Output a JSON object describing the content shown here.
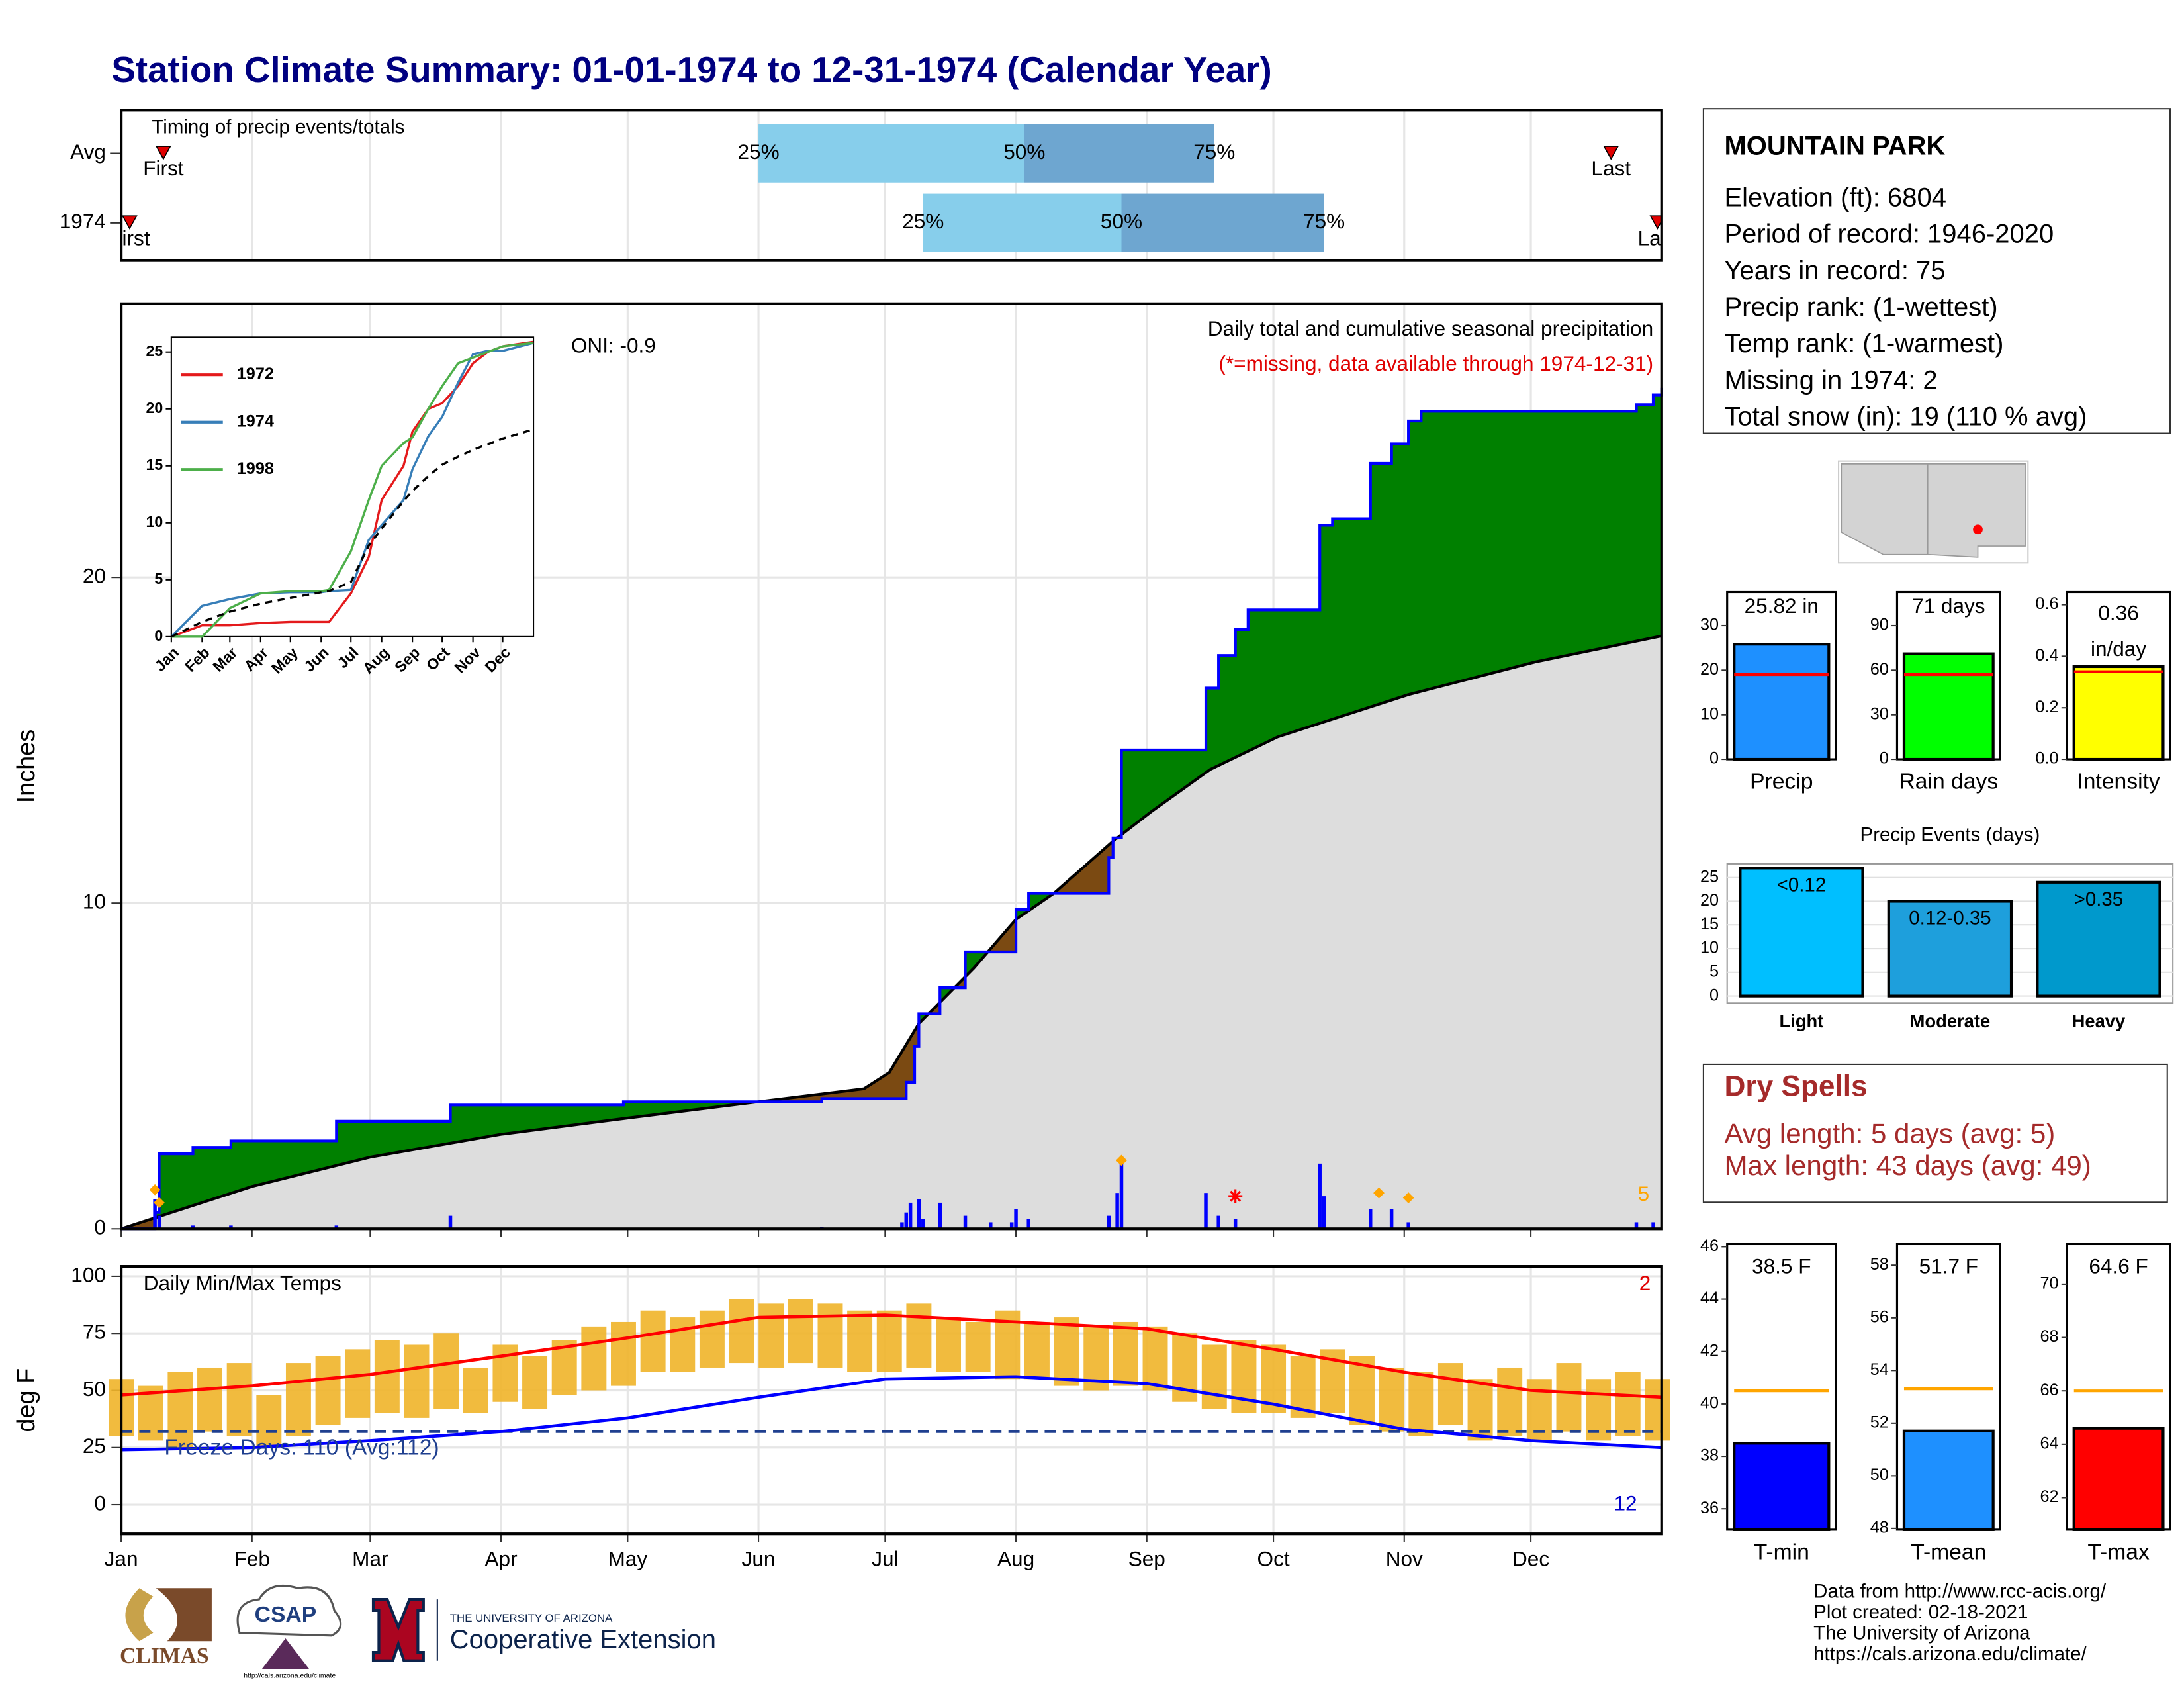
{
  "title": "Station Climate Summary: 01-01-1974 to 12-31-1974 (Calendar Year)",
  "chart_data": [
    {
      "type": "range",
      "label": "Timing of precip events/totals",
      "categories": [
        "Avg",
        "1974"
      ],
      "first": [
        11,
        3
      ],
      "last": [
        354,
        365
      ],
      "first_label": "First",
      "last_label": "Last",
      "q25": [
        152,
        191
      ],
      "q50": [
        215,
        238
      ],
      "q75": [
        260,
        286
      ],
      "q_labels": [
        "25%",
        "50%",
        "75%"
      ],
      "xlim": [
        1,
        366
      ],
      "colors": [
        "#87ceeb",
        "#6ea6d0"
      ]
    },
    {
      "type": "area",
      "ylabel": "Inches",
      "annotation": "Daily total and cumulative seasonal precipitation",
      "note": "(*=missing, data available through 1974-12-31)",
      "oni": "ONI: -0.9",
      "corner_label": "5",
      "xlim": [
        1,
        366
      ],
      "ylim": [
        0,
        28.4
      ],
      "yticks": [
        0,
        10,
        20
      ],
      "grid": true,
      "cumulative": {
        "color": "#0000ff",
        "x": [
          1,
          9,
          10,
          18,
          27,
          52,
          79,
          120,
          167,
          187,
          189,
          190,
          195,
          201,
          213,
          216,
          235,
          236,
          238,
          258,
          261,
          265,
          268,
          285,
          288,
          297,
          302,
          306,
          309,
          360,
          364,
          366
        ],
        "values": [
          0,
          0.5,
          2.3,
          2.5,
          2.7,
          3.3,
          3.8,
          3.9,
          4.0,
          4.5,
          5.6,
          6.6,
          7.4,
          8.5,
          9.8,
          10.3,
          11.4,
          12.0,
          14.7,
          16.6,
          17.6,
          18.4,
          19.0,
          21.6,
          21.8,
          23.5,
          24.1,
          24.8,
          25.1,
          25.3,
          25.6,
          25.82
        ]
      },
      "average": {
        "color": "#000000",
        "x": [
          1,
          32,
          60,
          91,
          121,
          152,
          177,
          183,
          190,
          203,
          213,
          222,
          236,
          245,
          259,
          275,
          306,
          336,
          366
        ],
        "values": [
          0,
          1.3,
          2.2,
          2.9,
          3.4,
          3.9,
          4.3,
          4.8,
          6.3,
          8.0,
          9.5,
          10.3,
          11.9,
          12.8,
          14.1,
          15.1,
          16.4,
          17.4,
          18.2
        ]
      },
      "fill_colors": {
        "above": "#008000",
        "below": "#7b4a12",
        "base": "#dddddd"
      },
      "daily": {
        "color": "#0000ff",
        "x": [
          9,
          10,
          18,
          27,
          52,
          79,
          167,
          186,
          187,
          188,
          190,
          191,
          195,
          201,
          207,
          212,
          213,
          216,
          235,
          237,
          238,
          258,
          261,
          265,
          285,
          286,
          297,
          302,
          306,
          360,
          364
        ],
        "values": [
          0.9,
          0.4,
          0.1,
          0.1,
          0.1,
          0.4,
          0.05,
          0.2,
          0.5,
          0.8,
          0.9,
          0.3,
          0.8,
          0.4,
          0.2,
          0.2,
          0.6,
          0.3,
          0.4,
          1.1,
          2.0,
          1.1,
          0.4,
          0.3,
          2.0,
          1.0,
          0.6,
          0.6,
          0.2,
          0.2,
          0.2
        ]
      },
      "markers": {
        "color": "#ffa500",
        "x": [
          9,
          10,
          238,
          299,
          306
        ],
        "values": [
          1.2,
          0.8,
          2.1,
          1.1,
          0.95
        ]
      },
      "missing": {
        "color": "#ff0000",
        "x": [
          265
        ],
        "values": [
          1.0
        ]
      }
    },
    {
      "type": "line",
      "xlim": [
        1,
        366
      ],
      "ylim": [
        0,
        26.3
      ],
      "yticks": [
        0,
        5,
        10,
        15,
        20,
        25
      ],
      "xticks": [
        {
          "value": 1,
          "label": "Jan"
        },
        {
          "value": 32,
          "label": "Feb"
        },
        {
          "value": 60,
          "label": "Mar"
        },
        {
          "value": 91,
          "label": "Apr"
        },
        {
          "value": 121,
          "label": "May"
        },
        {
          "value": 152,
          "label": "Jun"
        },
        {
          "value": 182,
          "label": "Jul"
        },
        {
          "value": 213,
          "label": "Aug"
        },
        {
          "value": 244,
          "label": "Sep"
        },
        {
          "value": 274,
          "label": "Oct"
        },
        {
          "value": 305,
          "label": "Nov"
        },
        {
          "value": 335,
          "label": "Dec"
        }
      ],
      "x": [
        1,
        32,
        60,
        91,
        121,
        152,
        160,
        182,
        200,
        213,
        235,
        244,
        260,
        274,
        290,
        305,
        320,
        335,
        366
      ],
      "series": [
        {
          "name": "1972",
          "color": "#e41a1c",
          "values": [
            0,
            1.0,
            1.0,
            1.2,
            1.3,
            1.3,
            1.3,
            3.8,
            7,
            12,
            15,
            18,
            20,
            20.5,
            22,
            24,
            25,
            25.5,
            25.9
          ]
        },
        {
          "name": "1974",
          "color": "#377eb8",
          "values": [
            0,
            2.7,
            3.3,
            3.8,
            3.9,
            3.9,
            4.0,
            4.1,
            8.5,
            9.8,
            12,
            14.7,
            17.6,
            19.3,
            22.3,
            24.8,
            25.1,
            25.1,
            25.8
          ]
        },
        {
          "name": "1998",
          "color": "#4daf4a",
          "values": [
            0,
            0,
            2.5,
            3.8,
            4.0,
            4.0,
            4.1,
            7.5,
            12,
            15,
            17,
            17.5,
            20,
            22,
            24,
            24.5,
            25,
            25.5,
            25.8
          ]
        },
        {
          "color": "#000000",
          "dash": true,
          "values": [
            0,
            1.3,
            2.2,
            2.9,
            3.4,
            3.9,
            4.0,
            4.8,
            8.0,
            9.5,
            11.9,
            12.8,
            14.1,
            15.1,
            15.8,
            16.4,
            16.9,
            17.4,
            18.2
          ]
        }
      ]
    },
    {
      "type": "line",
      "title": "Daily Min/Max Temps",
      "ylabel": "deg F",
      "freeze_label": "Freeze Days: 110 (Avg:112)",
      "hot_label": "2",
      "cold_label": "12",
      "freeze": 32,
      "xlim": [
        1,
        366
      ],
      "ylim": [
        -12.8,
        104.3
      ],
      "yticks": [
        0,
        25,
        50,
        75,
        100
      ],
      "grid": true,
      "xticks": [
        {
          "value": 1,
          "label": "Jan"
        },
        {
          "value": 32,
          "label": "Feb"
        },
        {
          "value": 60,
          "label": "Mar"
        },
        {
          "value": 91,
          "label": "Apr"
        },
        {
          "value": 121,
          "label": "May"
        },
        {
          "value": 152,
          "label": "Jun"
        },
        {
          "value": 182,
          "label": "Jul"
        },
        {
          "value": 213,
          "label": "Aug"
        },
        {
          "value": 244,
          "label": "Sep"
        },
        {
          "value": 274,
          "label": "Oct"
        },
        {
          "value": 305,
          "label": "Nov"
        },
        {
          "value": 335,
          "label": "Dec"
        }
      ],
      "normals": [
        {
          "color": "#ff0000",
          "x": [
            1,
            32,
            60,
            91,
            121,
            152,
            182,
            213,
            244,
            274,
            305,
            335,
            366
          ],
          "values": [
            48,
            52,
            57,
            65,
            73,
            82,
            83,
            80,
            77,
            68,
            58,
            50,
            47
          ]
        },
        {
          "color": "#0000ff",
          "x": [
            1,
            32,
            60,
            91,
            121,
            152,
            182,
            213,
            244,
            274,
            305,
            335,
            366
          ],
          "values": [
            24,
            25,
            28,
            32,
            38,
            47,
            55,
            56,
            53,
            44,
            33,
            28,
            25
          ]
        }
      ],
      "daily": {
        "color": "#f0b429",
        "x": [
          1,
          8,
          15,
          22,
          29,
          36,
          43,
          50,
          57,
          64,
          71,
          78,
          85,
          92,
          99,
          106,
          113,
          120,
          127,
          134,
          141,
          148,
          155,
          162,
          169,
          176,
          183,
          190,
          197,
          204,
          211,
          218,
          225,
          232,
          239,
          246,
          253,
          260,
          267,
          274,
          281,
          288,
          295,
          302,
          309,
          316,
          323,
          330,
          337,
          344,
          351,
          358,
          365
        ],
        "max": [
          55,
          52,
          58,
          60,
          62,
          48,
          62,
          65,
          68,
          72,
          70,
          75,
          60,
          70,
          65,
          72,
          78,
          80,
          85,
          82,
          85,
          90,
          88,
          90,
          88,
          85,
          85,
          88,
          82,
          80,
          85,
          80,
          82,
          78,
          80,
          78,
          75,
          70,
          72,
          70,
          65,
          68,
          65,
          60,
          58,
          62,
          55,
          60,
          55,
          62,
          55,
          58,
          55
        ],
        "min": [
          30,
          28,
          25,
          32,
          30,
          25,
          30,
          35,
          38,
          40,
          38,
          42,
          40,
          45,
          42,
          48,
          50,
          52,
          58,
          58,
          60,
          62,
          60,
          62,
          60,
          58,
          58,
          60,
          58,
          58,
          55,
          55,
          52,
          50,
          52,
          50,
          45,
          42,
          40,
          40,
          38,
          40,
          35,
          32,
          30,
          35,
          28,
          30,
          28,
          32,
          28,
          30,
          28
        ]
      }
    },
    {
      "type": "bar",
      "categories": [
        "Precip"
      ],
      "values": [
        25.82
      ],
      "value_labels": [
        "25.82 in"
      ],
      "avg": 19,
      "avg_color": "#ff0000",
      "color": "#1e90ff",
      "ylim": [
        0,
        37.5
      ],
      "yticks": [
        0,
        10,
        20,
        30
      ]
    },
    {
      "type": "bar",
      "categories": [
        "Rain days"
      ],
      "values": [
        71
      ],
      "value_labels": [
        "71 days"
      ],
      "avg": 57,
      "avg_color": "#ff0000",
      "color": "#00ff00",
      "ylim": [
        0,
        112.5
      ],
      "yticks": [
        0,
        30,
        60,
        90
      ]
    },
    {
      "type": "bar",
      "categories": [
        "Intensity"
      ],
      "values": [
        0.36
      ],
      "unit": "in/day",
      "avg": 0.34,
      "avg_color": "#ff0000",
      "color": "#ffff00",
      "ylim": [
        0,
        0.649
      ],
      "yticks": [
        {
          "value": 0,
          "label": "0.0"
        },
        {
          "value": 0.2,
          "label": "0.2"
        },
        {
          "value": 0.4,
          "label": "0.4"
        },
        {
          "value": 0.6,
          "label": "0.6"
        }
      ]
    },
    {
      "type": "bar",
      "title": "Precip Events (days)",
      "categories": [
        "Light",
        "Moderate",
        "Heavy"
      ],
      "values": [
        27,
        20,
        24
      ],
      "bar_labels": [
        "<0.12",
        "0.12-0.35",
        ">0.35"
      ],
      "colors": [
        "#00bfff",
        "#1e9fdc",
        "#0099cc"
      ],
      "ylim": [
        -1.5,
        27.9
      ],
      "yticks": [
        0,
        5,
        10,
        15,
        20,
        25
      ],
      "grid": true
    },
    {
      "type": "bar",
      "categories": [
        "T-min"
      ],
      "values": [
        38.5
      ],
      "value_labels": [
        "38.5 F"
      ],
      "avg": 40.5,
      "avg_color": "#ffa500",
      "color": "#0000ff",
      "ylim": [
        35.2,
        46.1
      ],
      "yticks": [
        36,
        38,
        40,
        42,
        44,
        46
      ]
    },
    {
      "type": "bar",
      "categories": [
        "T-mean"
      ],
      "values": [
        51.7
      ],
      "value_labels": [
        "51.7 F"
      ],
      "avg": 53.3,
      "avg_color": "#ffa500",
      "color": "#1e90ff",
      "ylim": [
        47.95,
        58.8
      ],
      "yticks": [
        48,
        50,
        52,
        54,
        56,
        58
      ]
    },
    {
      "type": "bar",
      "categories": [
        "T-max"
      ],
      "values": [
        64.6
      ],
      "value_labels": [
        "64.6 F"
      ],
      "avg": 66,
      "avg_color": "#ffa500",
      "color": "#ff0000",
      "ylim": [
        60.8,
        71.5
      ],
      "yticks": [
        62,
        64,
        66,
        68,
        70
      ]
    }
  ],
  "station": {
    "name": "MOUNTAIN PARK",
    "lines": [
      "Elevation (ft): 6804",
      "Period of record: 1946-2020",
      "Years in record: 75",
      "Precip rank:  (1-wettest)",
      "Temp rank:  (1-warmest)",
      "Missing in 1974: 2",
      "Total snow (in): 19 (110 % avg)"
    ]
  },
  "dry_spells": {
    "title": "Dry Spells",
    "lines": [
      "Avg length: 5 days (avg: 5)",
      "Max length: 43 days (avg: 49)"
    ]
  },
  "footer": [
    "Data from http://www.rcc-acis.org/",
    "Plot created: 02-18-2021",
    "The University of Arizona",
    "https://cals.arizona.edu/climate/"
  ],
  "logos": {
    "climas": "CLIMAS",
    "csap": "CSAP",
    "csap_url": "http://cals.arizona.edu/climate",
    "ua": "THE UNIVERSITY OF ARIZONA",
    "coop": "Cooperative Extension"
  }
}
